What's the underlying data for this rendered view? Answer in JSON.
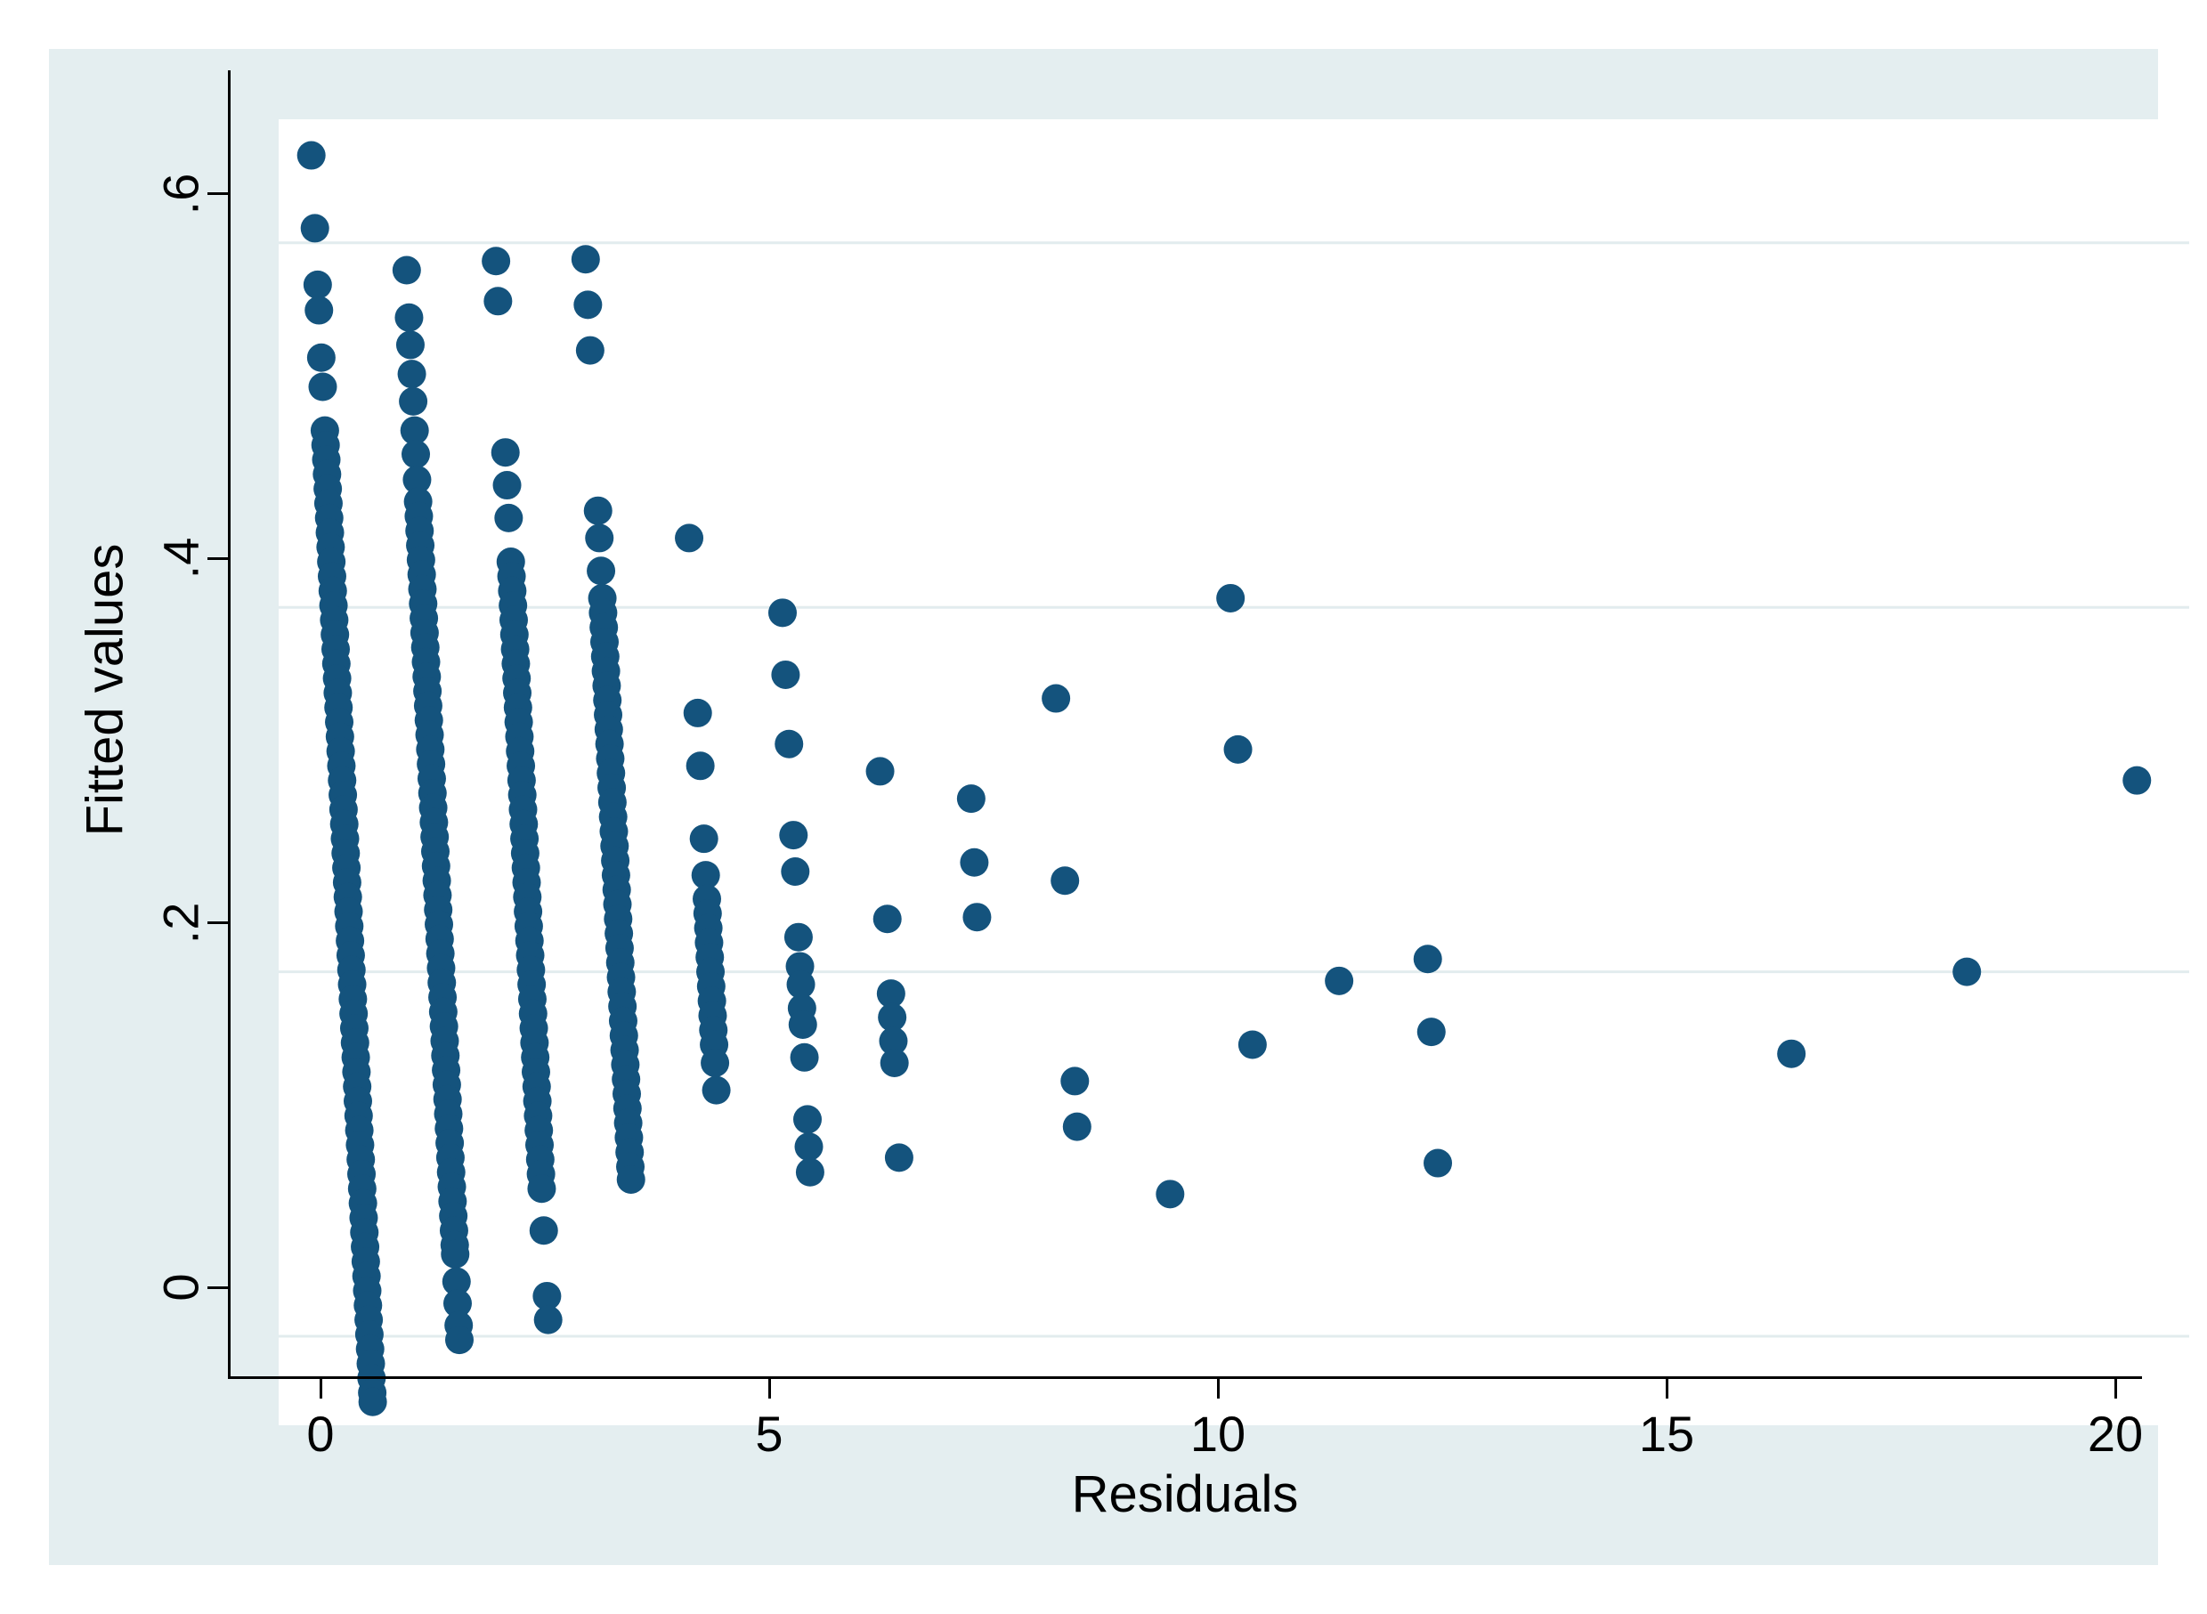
{
  "colors": {
    "marker": "#14537d",
    "panel_background": "#e4eef0",
    "plot_background": "#ffffff",
    "gridline": "#e2ecee",
    "axis": "#000000"
  },
  "chart_data": {
    "type": "scatter",
    "title": "",
    "xlabel": "Residuals",
    "ylabel": "Fitted values",
    "xlim": [
      -1.01,
      20.28
    ],
    "ylim": [
      -0.049,
      0.668
    ],
    "x_ticks": [
      {
        "value": 0,
        "label": "0"
      },
      {
        "value": 5,
        "label": "5"
      },
      {
        "value": 10,
        "label": "10"
      },
      {
        "value": 15,
        "label": "15"
      },
      {
        "value": 20,
        "label": "20"
      }
    ],
    "y_ticks": [
      {
        "value": 0,
        "label": "0"
      },
      {
        "value": 0.2,
        "label": ".2"
      },
      {
        "value": 0.4,
        "label": ".4"
      },
      {
        "value": 0.6,
        "label": ".6"
      }
    ],
    "grid": "horizontal gridlines at y ticks only",
    "legend": "none",
    "note": "residual-vs-fitted scatter; every point lies on a line residual = n - fitted for an integer observed count n; points stored as fitted values per n, x = n - fitted",
    "marker_radius_px": 16,
    "series": [
      {
        "n": 0,
        "fitted": [
          0.648,
          0.608,
          0.577,
          0.563,
          0.537,
          0.521,
          0.497,
          0.489,
          0.481,
          0.473,
          0.465,
          0.457,
          0.449,
          0.441,
          0.433,
          0.425,
          0.417,
          0.409,
          0.401,
          0.393,
          0.385,
          0.377,
          0.369,
          0.361,
          0.353,
          0.345,
          0.337,
          0.329,
          0.321,
          0.313,
          0.305,
          0.297,
          0.289,
          0.281,
          0.273,
          0.265,
          0.257,
          0.249,
          0.241,
          0.233,
          0.225,
          0.217,
          0.209,
          0.201,
          0.193,
          0.185,
          0.177,
          0.169,
          0.161,
          0.153,
          0.145,
          0.137,
          0.129,
          0.121,
          0.113,
          0.105,
          0.097,
          0.089,
          0.081,
          0.073,
          0.065,
          0.057,
          0.049,
          0.041,
          0.033,
          0.025,
          0.017,
          0.009,
          0.001,
          -0.007,
          -0.015,
          -0.023,
          -0.031,
          -0.036
        ]
      },
      {
        "n": 1,
        "fitted": [
          0.585,
          0.559,
          0.544,
          0.528,
          0.513,
          0.497,
          0.484,
          0.47,
          0.458,
          0.45,
          0.442,
          0.434,
          0.426,
          0.418,
          0.41,
          0.402,
          0.394,
          0.386,
          0.378,
          0.37,
          0.362,
          0.354,
          0.346,
          0.338,
          0.33,
          0.322,
          0.314,
          0.306,
          0.298,
          0.29,
          0.282,
          0.274,
          0.266,
          0.258,
          0.25,
          0.242,
          0.234,
          0.226,
          0.218,
          0.21,
          0.202,
          0.194,
          0.186,
          0.178,
          0.17,
          0.162,
          0.154,
          0.146,
          0.138,
          0.13,
          0.122,
          0.114,
          0.106,
          0.098,
          0.09,
          0.082,
          0.074,
          0.066,
          0.058,
          0.05,
          0.045,
          0.03,
          0.018,
          0.006,
          -0.002
        ]
      },
      {
        "n": 2,
        "fitted": [
          0.59,
          0.568,
          0.485,
          0.467,
          0.449,
          0.425,
          0.417,
          0.409,
          0.401,
          0.393,
          0.385,
          0.377,
          0.369,
          0.361,
          0.353,
          0.345,
          0.337,
          0.329,
          0.321,
          0.313,
          0.305,
          0.297,
          0.289,
          0.281,
          0.273,
          0.265,
          0.257,
          0.249,
          0.241,
          0.233,
          0.225,
          0.217,
          0.209,
          0.201,
          0.193,
          0.185,
          0.177,
          0.169,
          0.161,
          0.153,
          0.145,
          0.137,
          0.129,
          0.121,
          0.113,
          0.105,
          0.097,
          0.089,
          0.081,
          0.058,
          0.022,
          0.009
        ]
      },
      {
        "n": 3,
        "fitted": [
          0.591,
          0.566,
          0.541,
          0.453,
          0.438,
          0.42,
          0.405,
          0.397,
          0.389,
          0.381,
          0.373,
          0.365,
          0.357,
          0.349,
          0.341,
          0.333,
          0.325,
          0.317,
          0.309,
          0.301,
          0.293,
          0.285,
          0.277,
          0.269,
          0.261,
          0.253,
          0.245,
          0.237,
          0.229,
          0.221,
          0.213,
          0.205,
          0.197,
          0.189,
          0.181,
          0.173,
          0.165,
          0.157,
          0.149,
          0.141,
          0.133,
          0.125,
          0.117,
          0.109,
          0.101,
          0.093,
          0.086
        ]
      },
      {
        "n": 4,
        "fitted": [
          0.438,
          0.342,
          0.313,
          0.273,
          0.253,
          0.24,
          0.232,
          0.224,
          0.216,
          0.208,
          0.2,
          0.192,
          0.184,
          0.176,
          0.168,
          0.16,
          0.15,
          0.135
        ]
      },
      {
        "n": 5,
        "fitted": [
          0.397,
          0.363,
          0.325,
          0.275,
          0.255,
          0.219,
          0.203,
          0.193,
          0.18,
          0.171,
          0.153,
          0.119,
          0.104,
          0.09
        ]
      },
      {
        "n": 6,
        "fitted": [
          0.31,
          0.229,
          0.188,
          0.175,
          0.162,
          0.15,
          0.098
        ]
      },
      {
        "n": 7,
        "fitted": [
          0.295,
          0.26,
          0.23
        ]
      },
      {
        "n": 8,
        "fitted": [
          0.35,
          0.25,
          0.14,
          0.115
        ]
      },
      {
        "n": 9,
        "fitted": [
          0.078
        ]
      },
      {
        "n": 10,
        "fitted": [
          0.405,
          0.322,
          0.16
        ]
      },
      {
        "n": 11,
        "fitted": [
          0.195
        ]
      },
      {
        "n": 12,
        "fitted": [
          0.207,
          0.167,
          0.095
        ]
      },
      {
        "n": 16,
        "fitted": [
          0.155
        ]
      },
      {
        "n": 18,
        "fitted": [
          0.2
        ]
      },
      {
        "n": 20,
        "fitted": [
          0.305
        ]
      }
    ]
  }
}
